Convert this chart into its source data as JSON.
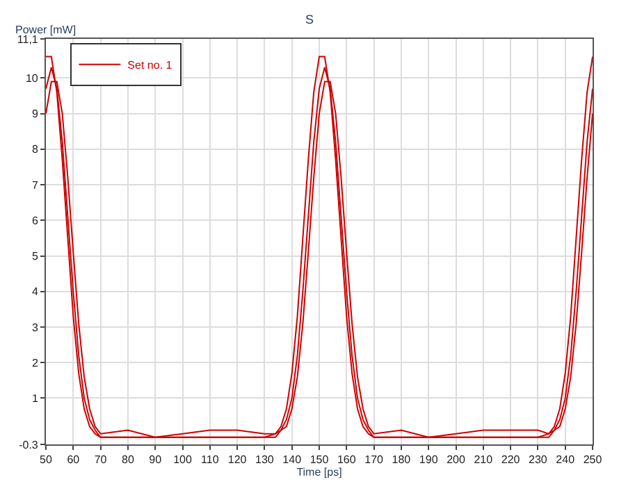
{
  "chart_data": {
    "type": "line",
    "title": "S",
    "xlabel": "Time [ps]",
    "ylabel": "Power [mW]",
    "xlim": [
      50,
      250
    ],
    "xticks": [
      50,
      60,
      70,
      80,
      90,
      100,
      110,
      120,
      130,
      140,
      150,
      160,
      170,
      180,
      190,
      200,
      210,
      220,
      230,
      240,
      250
    ],
    "ylim": [
      -0.3,
      11.1
    ],
    "yticks": [
      -0.3,
      1,
      2,
      3,
      4,
      5,
      6,
      7,
      8,
      9,
      10,
      {
        "value": 11.1,
        "label": "11,1"
      }
    ],
    "grid": true,
    "legend": "top left",
    "line_style": "solid",
    "series": [
      {
        "name": "Set no. 1",
        "color": "#cc0000",
        "x": [
          50,
          52,
          54,
          56,
          58,
          60,
          62,
          64,
          66,
          68,
          70,
          80,
          90,
          100,
          110,
          120,
          130,
          134,
          136,
          138,
          140,
          142,
          144,
          146,
          148,
          150,
          152,
          154,
          156,
          158,
          160,
          162,
          164,
          166,
          168,
          170,
          180,
          190,
          200,
          210,
          220,
          230,
          234,
          236,
          238,
          240,
          242,
          244,
          246,
          248,
          250
        ],
        "values": [
          9.7,
          10.3,
          9.7,
          8.2,
          6.1,
          4.0,
          2.2,
          1.0,
          0.4,
          0.1,
          -0.1,
          -0.1,
          -0.1,
          -0.1,
          -0.1,
          -0.1,
          -0.1,
          -0.1,
          0.1,
          0.4,
          1.0,
          2.2,
          4.0,
          6.1,
          8.2,
          9.7,
          10.3,
          9.7,
          8.2,
          6.1,
          4.0,
          2.2,
          1.0,
          0.4,
          0.1,
          -0.1,
          -0.1,
          -0.1,
          -0.1,
          -0.1,
          -0.1,
          -0.1,
          -0.1,
          0.1,
          0.4,
          1.0,
          2.2,
          4.0,
          6.1,
          8.2,
          9.7
        ]
      },
      {
        "color": "#cc0000",
        "x": [
          50,
          52,
          54,
          56,
          58,
          60,
          62,
          64,
          66,
          68,
          70,
          80,
          90,
          100,
          110,
          120,
          130,
          134,
          136,
          138,
          140,
          142,
          144,
          146,
          148,
          150,
          152,
          154,
          156,
          158,
          160,
          162,
          164,
          166,
          168,
          170,
          180,
          190,
          200,
          210,
          220,
          230,
          234,
          236,
          238,
          240,
          242,
          244,
          246,
          248,
          250
        ],
        "values": [
          9.0,
          9.9,
          9.9,
          9.0,
          7.2,
          5.1,
          3.1,
          1.6,
          0.7,
          0.2,
          0.0,
          0.1,
          -0.1,
          0.0,
          0.1,
          0.1,
          0.0,
          0.0,
          0.1,
          0.2,
          0.7,
          1.6,
          3.1,
          5.1,
          7.2,
          9.0,
          9.9,
          9.9,
          9.0,
          7.2,
          5.1,
          3.1,
          1.6,
          0.7,
          0.2,
          0.0,
          0.1,
          -0.1,
          0.0,
          0.1,
          0.1,
          0.1,
          0.0,
          0.1,
          0.2,
          0.7,
          1.6,
          3.1,
          5.1,
          7.2,
          9.0
        ]
      },
      {
        "color": "#cc0000",
        "x": [
          50,
          52,
          54,
          56,
          58,
          60,
          62,
          64,
          66,
          68,
          70,
          80,
          90,
          100,
          110,
          120,
          130,
          134,
          136,
          138,
          140,
          142,
          144,
          146,
          148,
          150,
          152,
          154,
          156,
          158,
          160,
          162,
          164,
          166,
          168,
          170,
          180,
          190,
          200,
          210,
          220,
          230,
          234,
          236,
          238,
          240,
          242,
          244,
          246,
          248,
          250
        ],
        "values": [
          10.6,
          10.6,
          9.6,
          7.7,
          5.5,
          3.3,
          1.7,
          0.7,
          0.2,
          0.0,
          -0.1,
          -0.1,
          -0.1,
          -0.1,
          -0.1,
          -0.1,
          -0.1,
          0.0,
          0.2,
          0.7,
          1.7,
          3.3,
          5.5,
          7.7,
          9.6,
          10.6,
          10.6,
          9.6,
          7.7,
          5.5,
          3.3,
          1.7,
          0.7,
          0.2,
          0.0,
          -0.1,
          -0.1,
          -0.1,
          -0.1,
          -0.1,
          -0.1,
          -0.1,
          0.0,
          0.2,
          0.7,
          1.7,
          3.3,
          5.5,
          7.7,
          9.6,
          10.6
        ]
      }
    ]
  }
}
